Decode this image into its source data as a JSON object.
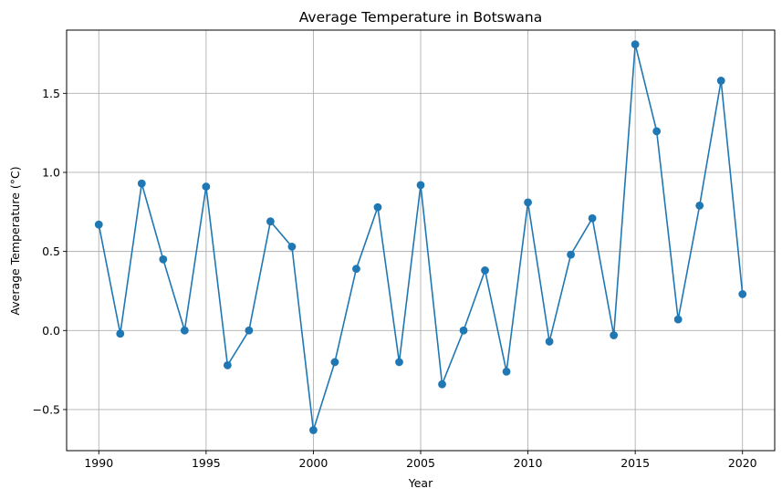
{
  "chart_data": {
    "type": "line",
    "title": "Average Temperature in Botswana",
    "xlabel": "Year",
    "ylabel": "Average Temperature (°C)",
    "xlim": [
      1988.5,
      2021.5
    ],
    "ylim": [
      -0.76,
      1.9
    ],
    "x_ticks": [
      1990,
      1995,
      2000,
      2005,
      2010,
      2015,
      2020
    ],
    "x_tick_labels": [
      "1990",
      "1995",
      "2000",
      "2005",
      "2010",
      "2015",
      "2020"
    ],
    "y_ticks": [
      -0.5,
      0.0,
      0.5,
      1.0,
      1.5
    ],
    "y_tick_labels": [
      "−0.5",
      "0.0",
      "0.5",
      "1.0",
      "1.5"
    ],
    "grid": true,
    "color": "#1f77b4",
    "marker": "circle",
    "series": [
      {
        "x": [
          1990,
          1991,
          1992,
          1993,
          1994,
          1995,
          1996,
          1997,
          1998,
          1999,
          2000,
          2001,
          2002,
          2003,
          2004,
          2005,
          2006,
          2007,
          2008,
          2009,
          2010,
          2011,
          2012,
          2013,
          2014,
          2015,
          2016,
          2017,
          2018,
          2019,
          2020
        ],
        "values": [
          0.67,
          -0.02,
          0.93,
          0.45,
          0.0,
          0.91,
          -0.22,
          0.0,
          0.69,
          0.53,
          -0.63,
          -0.2,
          0.39,
          0.78,
          -0.2,
          0.92,
          -0.34,
          0.0,
          0.38,
          -0.26,
          0.81,
          -0.07,
          0.48,
          0.71,
          -0.03,
          1.81,
          1.26,
          0.07,
          0.79,
          1.58,
          0.23
        ]
      }
    ]
  }
}
